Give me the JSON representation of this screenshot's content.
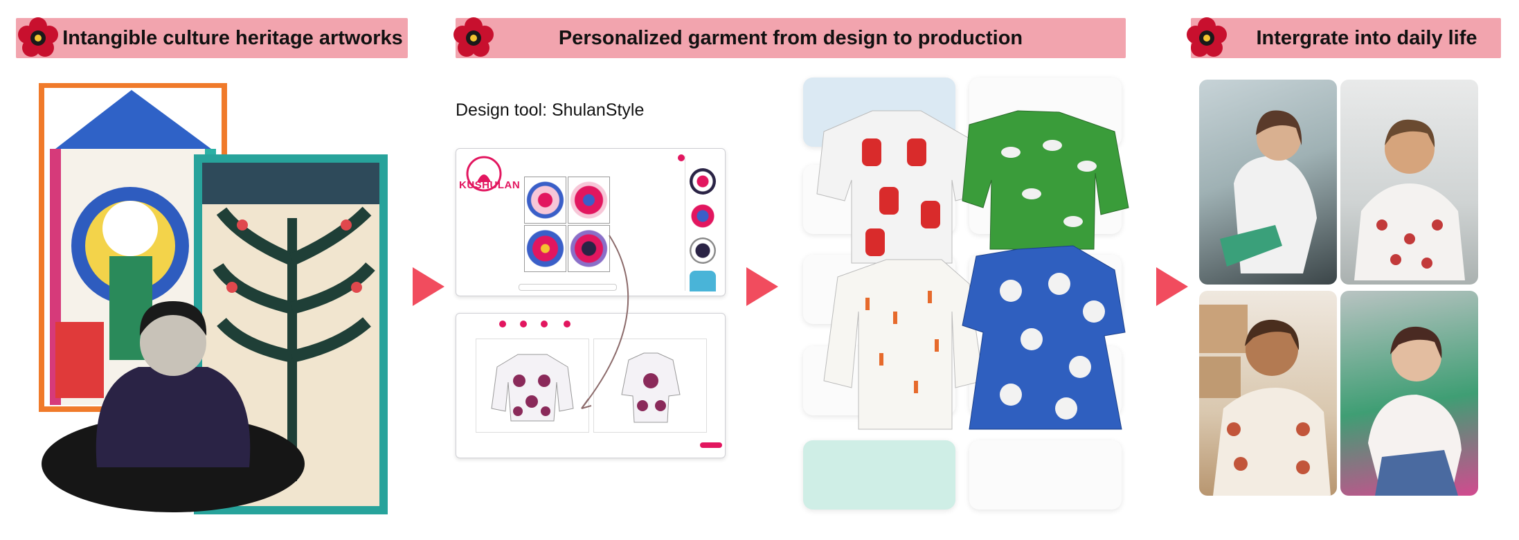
{
  "banners": {
    "left": "Intangible culture heritage artworks",
    "middle": "Personalized garment from design to production",
    "right": "Intergrate into daily life"
  },
  "design_tool": {
    "label": "Design tool: ShulanStyle",
    "logo_text": "KUSHULAN"
  },
  "colors": {
    "banner_bg": "#f2a4ae",
    "arrow": "#f14c5e",
    "brand": "#e2165f"
  }
}
